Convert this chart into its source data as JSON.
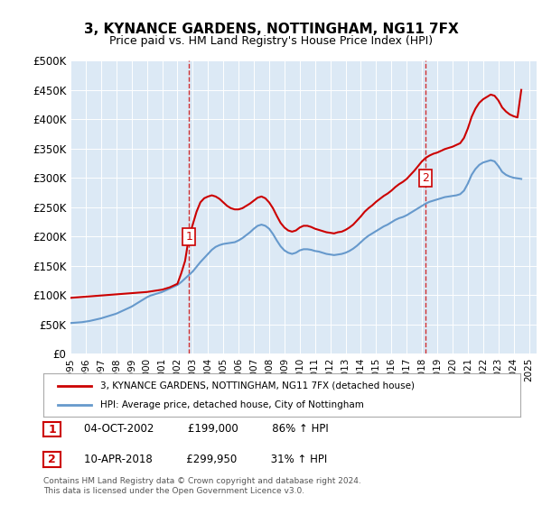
{
  "title": "3, KYNANCE GARDENS, NOTTINGHAM, NG11 7FX",
  "subtitle": "Price paid vs. HM Land Registry's House Price Index (HPI)",
  "ylabel": "",
  "ylim": [
    0,
    500000
  ],
  "yticks": [
    0,
    50000,
    100000,
    150000,
    200000,
    250000,
    300000,
    350000,
    400000,
    450000,
    500000
  ],
  "ytick_labels": [
    "£0",
    "£50K",
    "£100K",
    "£150K",
    "£200K",
    "£250K",
    "£300K",
    "£350K",
    "£400K",
    "£450K",
    "£500K"
  ],
  "xlim_start": 1995.0,
  "xlim_end": 2025.5,
  "xticks": [
    1995,
    1996,
    1997,
    1998,
    1999,
    2000,
    2001,
    2002,
    2003,
    2004,
    2005,
    2006,
    2007,
    2008,
    2009,
    2010,
    2011,
    2012,
    2013,
    2014,
    2015,
    2016,
    2017,
    2018,
    2019,
    2020,
    2021,
    2022,
    2023,
    2024,
    2025
  ],
  "red_color": "#cc0000",
  "blue_color": "#6699cc",
  "vline_color": "#cc0000",
  "bg_color": "#dce9f5",
  "plot_bg": "#dce9f5",
  "legend_label_red": "3, KYNANCE GARDENS, NOTTINGHAM, NG11 7FX (detached house)",
  "legend_label_blue": "HPI: Average price, detached house, City of Nottingham",
  "marker1_x": 2002.75,
  "marker1_y": 199000,
  "marker2_x": 2018.25,
  "marker2_y": 299950,
  "annotation1_label": "1",
  "annotation2_label": "2",
  "table_data": [
    [
      "1",
      "04-OCT-2002",
      "£199,000",
      "86% ↑ HPI"
    ],
    [
      "2",
      "10-APR-2018",
      "£299,950",
      "31% ↑ HPI"
    ]
  ],
  "footer": "Contains HM Land Registry data © Crown copyright and database right 2024.\nThis data is licensed under the Open Government Licence v3.0.",
  "hpi_data_x": [
    1995.0,
    1995.25,
    1995.5,
    1995.75,
    1996.0,
    1996.25,
    1996.5,
    1996.75,
    1997.0,
    1997.25,
    1997.5,
    1997.75,
    1998.0,
    1998.25,
    1998.5,
    1998.75,
    1999.0,
    1999.25,
    1999.5,
    1999.75,
    2000.0,
    2000.25,
    2000.5,
    2000.75,
    2001.0,
    2001.25,
    2001.5,
    2001.75,
    2002.0,
    2002.25,
    2002.5,
    2002.75,
    2003.0,
    2003.25,
    2003.5,
    2003.75,
    2004.0,
    2004.25,
    2004.5,
    2004.75,
    2005.0,
    2005.25,
    2005.5,
    2005.75,
    2006.0,
    2006.25,
    2006.5,
    2006.75,
    2007.0,
    2007.25,
    2007.5,
    2007.75,
    2008.0,
    2008.25,
    2008.5,
    2008.75,
    2009.0,
    2009.25,
    2009.5,
    2009.75,
    2010.0,
    2010.25,
    2010.5,
    2010.75,
    2011.0,
    2011.25,
    2011.5,
    2011.75,
    2012.0,
    2012.25,
    2012.5,
    2012.75,
    2013.0,
    2013.25,
    2013.5,
    2013.75,
    2014.0,
    2014.25,
    2014.5,
    2014.75,
    2015.0,
    2015.25,
    2015.5,
    2015.75,
    2016.0,
    2016.25,
    2016.5,
    2016.75,
    2017.0,
    2017.25,
    2017.5,
    2017.75,
    2018.0,
    2018.25,
    2018.5,
    2018.75,
    2019.0,
    2019.25,
    2019.5,
    2019.75,
    2020.0,
    2020.25,
    2020.5,
    2020.75,
    2021.0,
    2021.25,
    2021.5,
    2021.75,
    2022.0,
    2022.25,
    2022.5,
    2022.75,
    2023.0,
    2023.25,
    2023.5,
    2023.75,
    2024.0,
    2024.25,
    2024.5
  ],
  "hpi_data_y": [
    52000,
    52500,
    53000,
    53500,
    54500,
    55500,
    57000,
    58500,
    60000,
    62000,
    64000,
    66000,
    68000,
    71000,
    74000,
    77000,
    80000,
    84000,
    88000,
    92000,
    96000,
    99000,
    101000,
    103000,
    105000,
    108000,
    111000,
    114000,
    117000,
    122000,
    128000,
    134000,
    140000,
    148000,
    156000,
    163000,
    170000,
    177000,
    182000,
    185000,
    187000,
    188000,
    189000,
    190000,
    193000,
    197000,
    202000,
    207000,
    213000,
    218000,
    220000,
    218000,
    213000,
    204000,
    193000,
    183000,
    176000,
    172000,
    170000,
    172000,
    176000,
    178000,
    178000,
    177000,
    175000,
    174000,
    172000,
    170000,
    169000,
    168000,
    169000,
    170000,
    172000,
    175000,
    179000,
    184000,
    190000,
    196000,
    201000,
    205000,
    209000,
    213000,
    217000,
    220000,
    224000,
    228000,
    231000,
    233000,
    236000,
    240000,
    244000,
    248000,
    252000,
    256000,
    259000,
    261000,
    263000,
    265000,
    267000,
    268000,
    269000,
    270000,
    272000,
    278000,
    290000,
    305000,
    315000,
    322000,
    326000,
    328000,
    330000,
    328000,
    320000,
    310000,
    305000,
    302000,
    300000,
    299000,
    298000
  ],
  "red_data_x": [
    1995.0,
    1995.25,
    1995.5,
    1995.75,
    1996.0,
    1996.25,
    1996.5,
    1996.75,
    1997.0,
    1997.25,
    1997.5,
    1997.75,
    1998.0,
    1998.25,
    1998.5,
    1998.75,
    1999.0,
    1999.25,
    1999.5,
    1999.75,
    2000.0,
    2000.25,
    2000.5,
    2000.75,
    2001.0,
    2001.25,
    2001.5,
    2001.75,
    2002.0,
    2002.25,
    2002.5,
    2002.75,
    2003.0,
    2003.25,
    2003.5,
    2003.75,
    2004.0,
    2004.25,
    2004.5,
    2004.75,
    2005.0,
    2005.25,
    2005.5,
    2005.75,
    2006.0,
    2006.25,
    2006.5,
    2006.75,
    2007.0,
    2007.25,
    2007.5,
    2007.75,
    2008.0,
    2008.25,
    2008.5,
    2008.75,
    2009.0,
    2009.25,
    2009.5,
    2009.75,
    2010.0,
    2010.25,
    2010.5,
    2010.75,
    2011.0,
    2011.25,
    2011.5,
    2011.75,
    2012.0,
    2012.25,
    2012.5,
    2012.75,
    2013.0,
    2013.25,
    2013.5,
    2013.75,
    2014.0,
    2014.25,
    2014.5,
    2014.75,
    2015.0,
    2015.25,
    2015.5,
    2015.75,
    2016.0,
    2016.25,
    2016.5,
    2016.75,
    2017.0,
    2017.25,
    2017.5,
    2017.75,
    2018.0,
    2018.25,
    2018.5,
    2018.75,
    2019.0,
    2019.25,
    2019.5,
    2019.75,
    2020.0,
    2020.25,
    2020.5,
    2020.75,
    2021.0,
    2021.25,
    2021.5,
    2021.75,
    2022.0,
    2022.25,
    2022.5,
    2022.75,
    2023.0,
    2023.25,
    2023.5,
    2023.75,
    2024.0,
    2024.25,
    2024.5
  ],
  "red_data_y": [
    95000,
    95500,
    96000,
    96500,
    97000,
    97500,
    98000,
    98500,
    99000,
    99500,
    100000,
    100500,
    101000,
    101500,
    102000,
    102500,
    103000,
    103500,
    104000,
    104500,
    105000,
    106000,
    107000,
    108000,
    109000,
    111000,
    113000,
    116000,
    119000,
    137000,
    158000,
    199000,
    220000,
    242000,
    258000,
    265000,
    268000,
    270000,
    268000,
    264000,
    258000,
    252000,
    248000,
    246000,
    246000,
    248000,
    252000,
    256000,
    261000,
    266000,
    268000,
    265000,
    258000,
    248000,
    235000,
    223000,
    215000,
    210000,
    208000,
    210000,
    215000,
    218000,
    218000,
    216000,
    213000,
    211000,
    209000,
    207000,
    206000,
    205000,
    207000,
    208000,
    211000,
    215000,
    220000,
    227000,
    234000,
    242000,
    248000,
    253000,
    259000,
    264000,
    269000,
    273000,
    278000,
    284000,
    289000,
    293000,
    298000,
    305000,
    312000,
    320000,
    328000,
    334000,
    338000,
    341000,
    343000,
    346000,
    349000,
    351000,
    353000,
    356000,
    359000,
    368000,
    384000,
    404000,
    418000,
    428000,
    434000,
    438000,
    442000,
    440000,
    432000,
    420000,
    413000,
    408000,
    405000,
    403000,
    450000
  ]
}
